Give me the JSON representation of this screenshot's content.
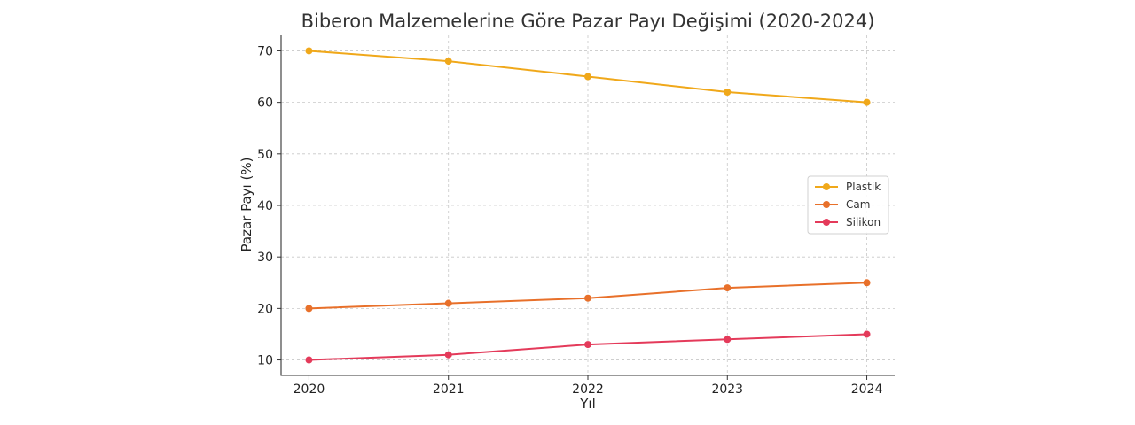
{
  "chart_data": {
    "type": "line",
    "title": "Biberon Malzemelerine Göre Pazar Payı Değişimi (2020-2024)",
    "xlabel": "Yıl",
    "ylabel": "Pazar Payı (%)",
    "x": [
      2020,
      2021,
      2022,
      2023,
      2024
    ],
    "x_tick_labels": [
      "2020",
      "2021",
      "2022",
      "2023",
      "2024"
    ],
    "xlim": [
      2019.8,
      2024.2
    ],
    "ylim": [
      7,
      73
    ],
    "yticks": [
      10,
      20,
      30,
      40,
      50,
      60,
      70
    ],
    "grid": true,
    "legend_position": "center-right",
    "series": [
      {
        "name": "Plastik",
        "color": "#f0a81a",
        "values": [
          70,
          68,
          65,
          62,
          60
        ]
      },
      {
        "name": "Cam",
        "color": "#e8702a",
        "values": [
          20,
          21,
          22,
          24,
          25
        ]
      },
      {
        "name": "Silikon",
        "color": "#e43a5a",
        "values": [
          10,
          11,
          13,
          14,
          15
        ]
      }
    ]
  }
}
